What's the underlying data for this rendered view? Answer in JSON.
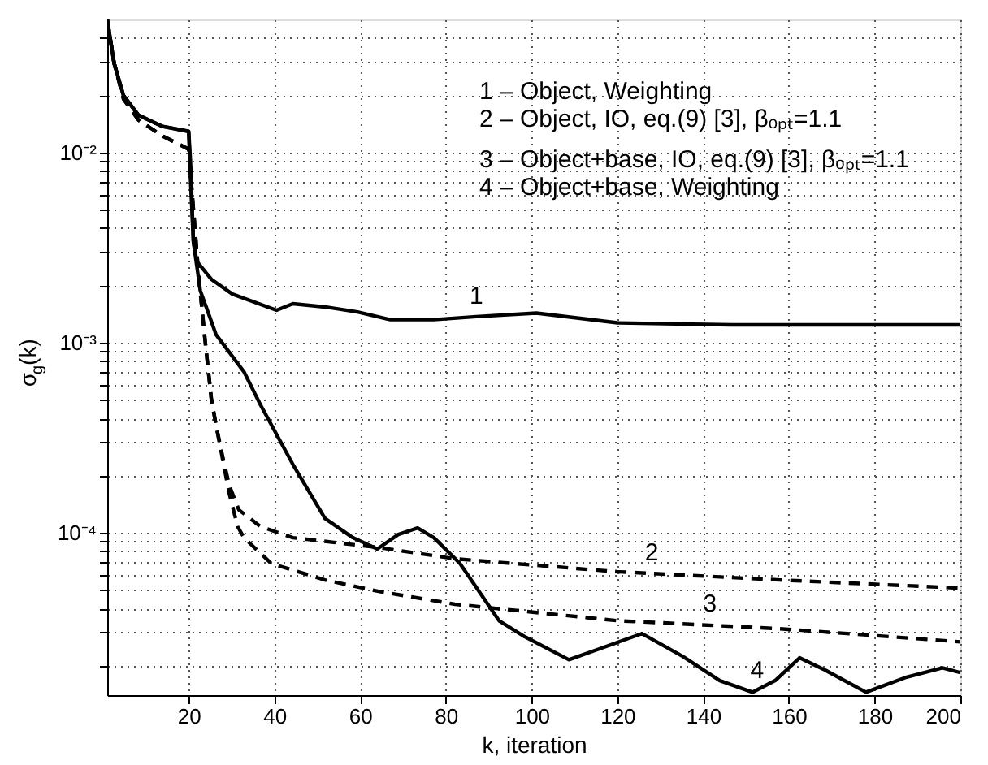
{
  "chart_data": {
    "type": "line",
    "xlabel": "k, iteration",
    "ylabel": "σ$_{g}$(k)",
    "xlim": [
      1,
      200
    ],
    "xticks": [
      20,
      40,
      60,
      80,
      100,
      120,
      140,
      160,
      180,
      200
    ],
    "ylim": [
      1.4e-05,
      0.05
    ],
    "log": true,
    "grid": true,
    "marker": "none",
    "yticks": [
      {
        "value": 2e-05,
        "label": null
      },
      {
        "value": 3e-05,
        "label": null
      },
      {
        "value": 4e-05,
        "label": null
      },
      {
        "value": 5e-05,
        "label": null
      },
      {
        "value": 6e-05,
        "label": null
      },
      {
        "value": 7e-05,
        "label": null
      },
      {
        "value": 8e-05,
        "label": null
      },
      {
        "value": 9e-05,
        "label": null
      },
      {
        "value": 0.0001,
        "label": "10⁻⁴"
      },
      {
        "value": 0.0002,
        "label": null
      },
      {
        "value": 0.0003,
        "label": null
      },
      {
        "value": 0.0004,
        "label": null
      },
      {
        "value": 0.0005,
        "label": null
      },
      {
        "value": 0.0006,
        "label": null
      },
      {
        "value": 0.0007,
        "label": null
      },
      {
        "value": 0.0008,
        "label": null
      },
      {
        "value": 0.0009,
        "label": null
      },
      {
        "value": 0.001,
        "label": "10⁻³"
      },
      {
        "value": 0.002,
        "label": null
      },
      {
        "value": 0.003,
        "label": null
      },
      {
        "value": 0.004,
        "label": null
      },
      {
        "value": 0.005,
        "label": null
      },
      {
        "value": 0.006,
        "label": null
      },
      {
        "value": 0.007,
        "label": null
      },
      {
        "value": 0.008,
        "label": null
      },
      {
        "value": 0.009,
        "label": null
      },
      {
        "value": 0.01,
        "label": "10⁻²"
      },
      {
        "value": 0.02,
        "label": null
      },
      {
        "value": 0.03,
        "label": null
      },
      {
        "value": 0.04,
        "label": null
      }
    ],
    "series": [
      {
        "color": "#000000",
        "line_style": "solid",
        "x": [
          1,
          2.6,
          4.8,
          8.3,
          13.9,
          20,
          20.4,
          21.1,
          21.9,
          25.3,
          30.2,
          40.5,
          44.3,
          51.8,
          59.4,
          67,
          77.2,
          87.1,
          101.1,
          120,
          146.6,
          200
        ],
        "values": [
          0.05,
          0.0295,
          0.0199,
          0.0157,
          0.0137,
          0.0129,
          0.00906,
          0.00339,
          0.00267,
          0.00215,
          0.0018,
          0.00148,
          0.0016,
          0.00154,
          0.00145,
          0.00132,
          0.00132,
          0.00137,
          0.00143,
          0.00127,
          0.00124,
          0.00124
        ]
      },
      {
        "color": "#000000",
        "line_style": "dashed",
        "x": [
          1,
          2.6,
          4.8,
          8.3,
          13.9,
          20,
          20.8,
          22.3,
          23.8,
          25.3,
          26.4,
          28,
          29.5,
          31.7,
          36.7,
          44.3,
          64.3,
          82.1,
          120,
          157.9,
          200
        ],
        "values": [
          0.05,
          0.0295,
          0.0191,
          0.0148,
          0.0122,
          0.0104,
          0.00611,
          0.00229,
          0.00104,
          0.000502,
          0.000367,
          0.000247,
          0.000177,
          0.000132,
          0.000108,
          9.42e-05,
          8.37e-05,
          7.3e-05,
          6.24e-05,
          5.65e-05,
          5.12e-05
        ]
      },
      {
        "color": "#000000",
        "line_style": "dashed",
        "x": [
          1,
          2.6,
          4.8,
          8.3,
          13.9,
          20,
          20.8,
          22.3,
          23.8,
          25.3,
          26.4,
          28,
          29.5,
          31.4,
          32.9,
          39.3,
          51.8,
          64.3,
          82.1,
          120,
          157.9,
          200
        ],
        "values": [
          0.05,
          0.0295,
          0.0191,
          0.0148,
          0.0122,
          0.0104,
          0.00611,
          0.00229,
          0.00104,
          0.000502,
          0.000367,
          0.000238,
          0.00016,
          0.000108,
          9.42e-05,
          6.89e-05,
          5.65e-05,
          4.92e-05,
          4.21e-05,
          3.45e-05,
          3.13e-05,
          2.67e-05
        ]
      },
      {
        "color": "#000000",
        "line_style": "solid",
        "x": [
          1,
          2.6,
          4.8,
          8.3,
          13.9,
          20,
          20.4,
          21.1,
          22.7,
          26.4,
          32.9,
          36.7,
          44.3,
          51.8,
          58.3,
          64,
          68.9,
          73.4,
          77.2,
          83.3,
          89,
          92.4,
          98.4,
          108.7,
          116.2,
          125.7,
          135.2,
          143.9,
          151.5,
          156.8,
          162.5,
          168.2,
          178,
          187.1,
          195.8,
          200
        ],
        "values": [
          0.05,
          0.0295,
          0.0199,
          0.0157,
          0.0137,
          0.0129,
          0.00744,
          0.00339,
          0.00188,
          0.0011,
          0.000702,
          0.000473,
          0.000229,
          0.000119,
          9.42e-05,
          8.22e-05,
          9.8e-05,
          0.000106,
          9.42e-05,
          6.89e-05,
          4.47e-05,
          3.45e-05,
          2.84e-05,
          2.15e-05,
          2.47e-05,
          2.95e-05,
          2.24e-05,
          1.67e-05,
          1.45e-05,
          1.67e-05,
          2.2e-05,
          1.91e-05,
          1.45e-05,
          1.73e-05,
          1.95e-05,
          1.84e-05
        ]
      }
    ],
    "annotations": [
      {
        "text": "1",
        "x": 87.1,
        "y": 0.00137
      },
      {
        "text": "2",
        "x": 128,
        "y": 6.1e-05
      },
      {
        "text": "3",
        "x": 141.6,
        "y": 3.3e-05
      },
      {
        "text": "4",
        "x": 152.6,
        "y": 1.47e-05
      },
      "1 – Object, Weighting",
      "2 – Object, IO, eq.(9) [3], βₒₚₜ=1.1",
      "3 – Object+base, IO, eq.(9) [3], βₒₚₜ=1.1",
      "4 – Object+base, Weighting"
    ]
  }
}
